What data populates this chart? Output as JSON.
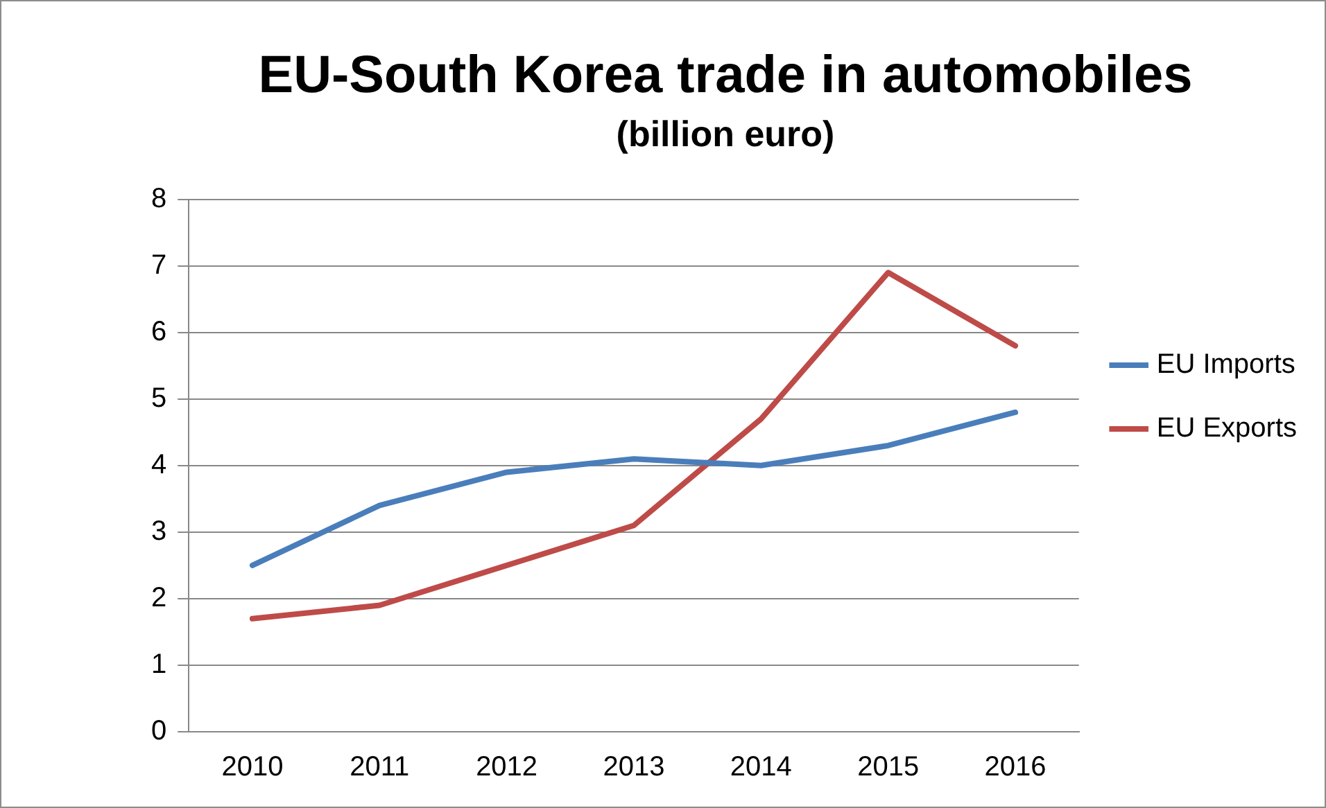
{
  "chart_data": {
    "type": "line",
    "title": "EU-South Korea trade in automobiles",
    "subtitle": "(billion euro)",
    "categories": [
      "2010",
      "2011",
      "2012",
      "2013",
      "2014",
      "2015",
      "2016"
    ],
    "series": [
      {
        "name": "EU Imports",
        "color": "#4a7ebb",
        "values": [
          2.5,
          3.4,
          3.9,
          4.1,
          4.0,
          4.3,
          4.8
        ]
      },
      {
        "name": "EU Exports",
        "color": "#be4b48",
        "values": [
          1.7,
          1.9,
          2.5,
          3.1,
          4.7,
          6.9,
          5.8
        ]
      }
    ],
    "ylim": [
      0,
      8
    ],
    "yticks": [
      0,
      1,
      2,
      3,
      4,
      5,
      6,
      7,
      8
    ],
    "grid": "y",
    "legend": "right",
    "marker": "none",
    "line_style": "solid"
  }
}
